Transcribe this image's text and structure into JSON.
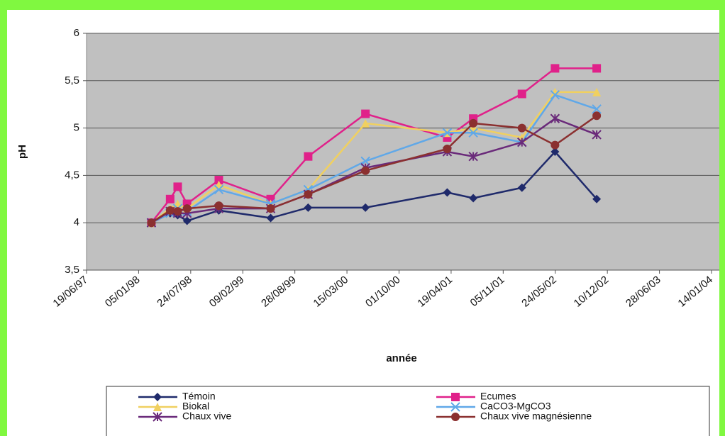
{
  "chart_data": {
    "type": "line",
    "y_label": "pH",
    "x_label": "année",
    "x": [
      "23/02/98",
      "06/05/98",
      "04/06/98",
      "10/07/98",
      "09/11/98",
      "27/05/99",
      "18/10/99",
      "25/05/00",
      "04/04/01",
      "13/07/01",
      "16/01/02",
      "23/05/02",
      "30/10/02"
    ],
    "series": [
      {
        "name": "Témoin",
        "color": "#1f2a6b",
        "marker": "diamond",
        "values": [
          4.0,
          4.1,
          4.08,
          4.02,
          4.13,
          4.05,
          4.16,
          4.16,
          4.32,
          4.26,
          4.37,
          4.75,
          4.25
        ]
      },
      {
        "name": "Ecumes",
        "color": "#e0218a",
        "marker": "square",
        "values": [
          4.0,
          4.25,
          4.38,
          4.2,
          4.45,
          4.25,
          4.7,
          5.15,
          4.9,
          5.1,
          5.36,
          5.63,
          5.63
        ]
      },
      {
        "name": "Biokal",
        "color": "#f0d060",
        "marker": "triangle",
        "values": [
          4.0,
          4.15,
          4.2,
          4.15,
          4.4,
          4.2,
          4.35,
          5.05,
          4.95,
          5.0,
          4.9,
          5.38,
          5.38
        ]
      },
      {
        "name": "CaCO3-MgCO3",
        "color": "#60a8e8",
        "marker": "x",
        "values": [
          4.0,
          4.1,
          4.15,
          4.12,
          4.35,
          4.2,
          4.35,
          4.65,
          4.95,
          4.95,
          4.85,
          5.35,
          5.2
        ]
      },
      {
        "name": "Chaux vive",
        "color": "#6a2a7a",
        "marker": "star",
        "values": [
          4.0,
          4.12,
          4.1,
          4.1,
          4.15,
          4.15,
          4.3,
          4.58,
          4.75,
          4.7,
          4.85,
          5.1,
          4.93
        ]
      },
      {
        "name": "Chaux vive magnésienne",
        "color": "#8b3030",
        "marker": "circle",
        "values": [
          4.0,
          4.13,
          4.12,
          4.15,
          4.18,
          4.15,
          4.3,
          4.55,
          4.78,
          5.05,
          5.0,
          4.82,
          5.13
        ]
      }
    ],
    "xlim": [
      "19/06/97",
      "14/01/04"
    ],
    "xticks": [
      "19/06/97",
      "05/01/98",
      "24/07/98",
      "09/02/99",
      "28/08/99",
      "15/03/00",
      "01/10/00",
      "19/04/01",
      "05/11/01",
      "24/05/02",
      "10/12/02",
      "28/06/03",
      "14/01/04"
    ],
    "ylim": [
      3.5,
      6
    ],
    "yticks": [
      {
        "value": 3.5,
        "label": "3,5"
      },
      4,
      {
        "value": 4.5,
        "label": "4,5"
      },
      5,
      {
        "value": 5.5,
        "label": "5,5"
      },
      6
    ],
    "grid": true
  }
}
